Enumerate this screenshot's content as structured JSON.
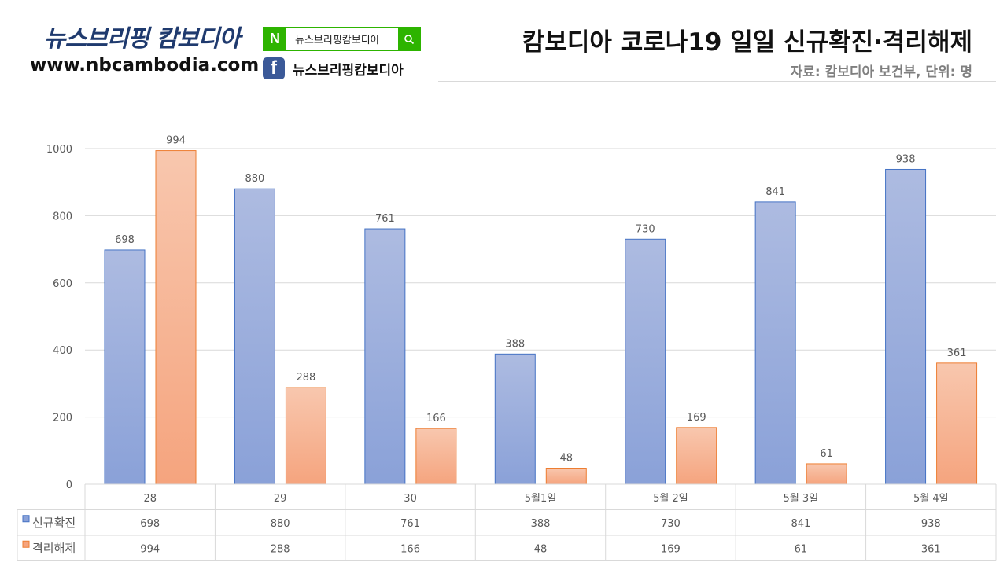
{
  "brand": {
    "title": "뉴스브리핑 캄보디아",
    "url": "www.nbcambodia.com",
    "naver_label": "N",
    "naver_search_text": "뉴스브리핑캄보디아",
    "facebook_label": "f",
    "facebook_text": "뉴스브리핑캄보디아"
  },
  "colors": {
    "series_blue_top": "#adbbe1",
    "series_blue_bottom": "#8aa1d8",
    "series_blue_border": "#4472c4",
    "series_orange_top": "#f8c7ae",
    "series_orange_bottom": "#f5a47e",
    "series_orange_border": "#ed7d31",
    "naver_green": "#2db400",
    "facebook_blue": "#3b5998"
  },
  "chart_data": {
    "type": "bar",
    "title": "캄보디아 코로나19 일일 신규확진·격리해제",
    "subtitle": "자료: 캄보디아 보건부, 단위: 명",
    "categories": [
      "28",
      "29",
      "30",
      "5월1일",
      "5월 2일",
      "5월 3일",
      "5월 4일"
    ],
    "series": [
      {
        "name": "신규확진",
        "values": [
          698,
          880,
          761,
          388,
          730,
          841,
          938
        ]
      },
      {
        "name": "격리해제",
        "values": [
          994,
          288,
          166,
          48,
          169,
          61,
          361
        ]
      }
    ],
    "ylim": [
      0,
      1000
    ],
    "yticks": [
      0,
      200,
      400,
      600,
      800,
      1000
    ],
    "grid": true,
    "legend": "data-table",
    "data_labels": true
  }
}
